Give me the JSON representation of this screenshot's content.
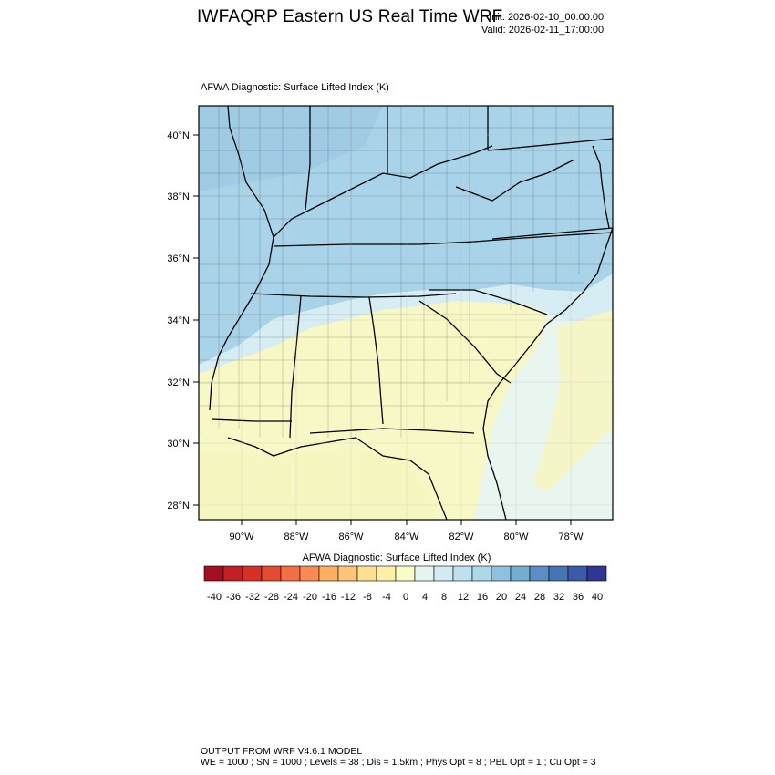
{
  "header": {
    "title": "IWFAQRP Eastern US Real Time WRF",
    "init": "Init: 2026-02-10_00:00:00",
    "valid": "Valid: 2026-02-11_17:00:00"
  },
  "map": {
    "subtitle": "AFWA Diagnostic: Surface Lifted Index   (K)",
    "lat_labels": [
      "40°N",
      "38°N",
      "36°N",
      "34°N",
      "32°N",
      "30°N",
      "28°N"
    ],
    "lon_labels": [
      "90°W",
      "88°W",
      "86°W",
      "84°W",
      "82°W",
      "80°W",
      "78°W"
    ]
  },
  "colorbar": {
    "title": "AFWA Diagnostic: Surface Lifted Index  (K)",
    "labels": [
      "-40",
      "-36",
      "-32",
      "-28",
      "-24",
      "-20",
      "-16",
      "-12",
      "-8",
      "-4",
      "0",
      "4",
      "8",
      "12",
      "16",
      "20",
      "24",
      "28",
      "32",
      "36",
      "40"
    ],
    "colors": [
      "#a50f26",
      "#c41f27",
      "#d73027",
      "#e34c33",
      "#f46d43",
      "#f98a55",
      "#fdae61",
      "#fdc478",
      "#fee090",
      "#fef0a8",
      "#fbfbc8",
      "#e6f5f0",
      "#d2ecf3",
      "#bfe0ee",
      "#abd9e9",
      "#8fc1de",
      "#74add1",
      "#5b8ec4",
      "#4575b4",
      "#3a5ca8",
      "#313695"
    ]
  },
  "footer": {
    "line1": "OUTPUT FROM WRF V4.6.1 MODEL",
    "line2": "WE = 1000 ; SN = 1000 ; Levels = 38 ; Dis = 1.5km ; Phys Opt = 8 ; PBL Opt = 1 ; Cu Opt = 3"
  }
}
